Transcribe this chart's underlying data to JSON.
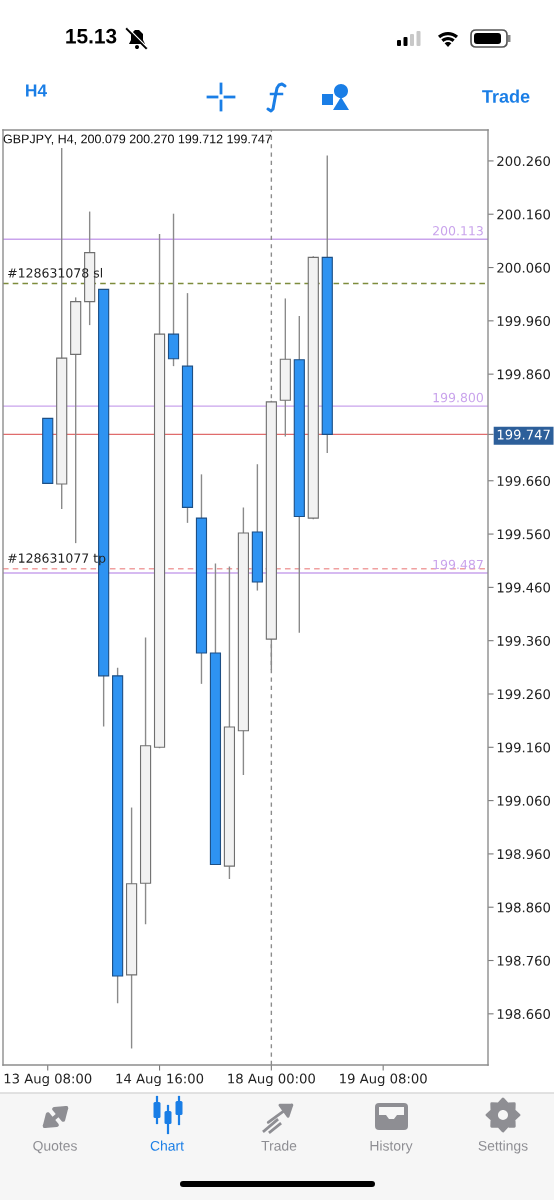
{
  "chart_data": {
    "type": "candlestick",
    "title": "GBPJPY, H4, 200.079 200.270 199.712 199.747",
    "categories": [
      "13 Aug 08:00",
      null,
      null,
      null,
      null,
      null,
      null,
      null,
      "14 Aug 16:00",
      null,
      null,
      null,
      null,
      null,
      null,
      null,
      "18 Aug 00:00",
      null,
      null,
      null,
      null,
      null,
      null,
      null,
      "19 Aug 08:00",
      null,
      null,
      null,
      null,
      null,
      null,
      null
    ],
    "ohlc": [
      [
        199.777,
        199.777,
        199.655,
        199.655
      ],
      [
        199.654,
        200.284,
        199.607,
        199.89
      ],
      [
        199.897,
        200.004,
        199.543,
        199.996
      ],
      [
        199.996,
        200.165,
        199.952,
        200.088
      ],
      [
        200.019,
        200.019,
        199.199,
        199.294
      ],
      [
        199.294,
        199.309,
        198.68,
        198.731
      ],
      [
        198.733,
        199.047,
        198.595,
        198.904
      ],
      [
        198.905,
        199.366,
        198.828,
        199.163
      ],
      [
        199.16,
        200.123,
        199.158,
        199.935
      ],
      [
        199.935,
        200.161,
        199.875,
        199.889
      ],
      [
        199.875,
        200.012,
        199.581,
        199.61
      ],
      [
        199.59,
        199.672,
        199.279,
        199.337
      ],
      [
        199.337,
        199.505,
        198.94,
        198.94
      ],
      [
        198.937,
        199.499,
        198.913,
        199.198
      ],
      [
        199.191,
        199.61,
        199.108,
        199.562
      ],
      [
        199.564,
        199.691,
        199.454,
        199.47
      ],
      [
        199.363,
        199.81,
        199.305,
        199.808
      ],
      [
        199.811,
        200.002,
        199.743,
        199.888
      ],
      [
        199.887,
        199.969,
        199.375,
        199.593
      ],
      [
        199.59,
        200.081,
        199.588,
        200.079
      ],
      [
        200.079,
        200.27,
        199.712,
        199.747
      ],
      null,
      null,
      null,
      null,
      null,
      null,
      null,
      null,
      null,
      null,
      null
    ],
    "colors": [
      "#2e93f2",
      "#f2f2f2",
      "#f2f2f2",
      "#f2f2f2",
      "#2e93f2",
      "#2e93f2",
      "#f2f2f2",
      "#f2f2f2",
      "#f2f2f2",
      "#2e93f2",
      "#2e93f2",
      "#2e93f2",
      "#2e93f2",
      "#f2f2f2",
      "#f2f2f2",
      "#2e93f2",
      "#f2f2f2",
      "#f2f2f2",
      "#2e93f2",
      "#f2f2f2",
      "#2e93f2",
      null,
      null,
      null,
      null,
      null,
      null,
      null,
      null,
      null,
      null,
      null
    ],
    "ylim": [
      198.564,
      200.318
    ],
    "yticks": [
      {
        "value": 200.26,
        "label": "200.260"
      },
      {
        "value": 200.16,
        "label": "200.160"
      },
      {
        "value": 200.06,
        "label": "200.060"
      },
      {
        "value": 199.96,
        "label": "199.960"
      },
      {
        "value": 199.86,
        "label": "199.860"
      },
      {
        "value": 199.747,
        "label": "199.747"
      },
      {
        "value": 199.66,
        "label": "199.660"
      },
      {
        "value": 199.56,
        "label": "199.560"
      },
      {
        "value": 199.46,
        "label": "199.460"
      },
      {
        "value": 199.36,
        "label": "199.360"
      },
      {
        "value": 199.26,
        "label": "199.260"
      },
      {
        "value": 199.16,
        "label": "199.160"
      },
      {
        "value": 199.06,
        "label": "199.060"
      },
      {
        "value": 198.96,
        "label": "198.960"
      },
      {
        "value": 198.86,
        "label": "198.860"
      },
      {
        "value": 198.76,
        "label": "198.760"
      },
      {
        "value": 198.66,
        "label": "198.660"
      }
    ],
    "ref_lines": [
      {
        "axis": "y",
        "value": 200.03,
        "label": "#128631078 sl",
        "color": "#7d8c3c",
        "line_style": "dashed"
      },
      {
        "axis": "y",
        "value": 199.495,
        "label": "#128631077 tp",
        "color": "#f0a0a0",
        "line_style": "dashed"
      },
      {
        "axis": "y",
        "value": 199.747,
        "color": "#e06c6c",
        "line_style": "solid"
      },
      {
        "axis": "y",
        "value": 200.113,
        "label": "200.113",
        "color": "#c9a3ec",
        "line_style": "solid"
      },
      {
        "axis": "y",
        "value": 199.8,
        "label": "199.800",
        "color": "#c9a3ec",
        "line_style": "solid"
      },
      {
        "axis": "y",
        "value": 199.487,
        "label": "199.487",
        "color": "#c9a3ec",
        "line_style": "solid"
      },
      {
        "axis": "x",
        "value": "18 Aug 00:00",
        "color": "#8c8c8c",
        "line_style": "dashed"
      }
    ],
    "annotations": [
      "15.13",
      "H4",
      "Trade",
      "Quotes",
      "Chart",
      "Trade",
      "History",
      "Settings"
    ]
  }
}
